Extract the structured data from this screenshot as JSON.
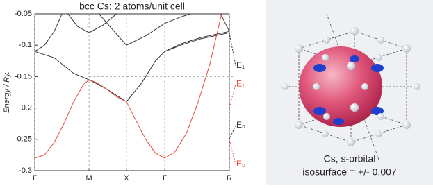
{
  "chart_data": {
    "type": "line",
    "title": "bcc Cs: 2 atoms/unit cell",
    "ylabel": "Energy / Ry.",
    "xlim": [
      0,
      1
    ],
    "ylim": [
      -0.3,
      -0.05
    ],
    "xticks": [
      {
        "value": 0,
        "label": "Γ"
      },
      {
        "value": 0.279,
        "label": "M"
      },
      {
        "value": 0.471,
        "label": "X"
      },
      {
        "value": 0.668,
        "label": "Γ"
      },
      {
        "value": 1,
        "label": "R"
      }
    ],
    "yticks": [
      -0.3,
      -0.25,
      -0.2,
      -0.15,
      -0.1,
      -0.05
    ],
    "grid": true,
    "reference_lines": [
      -0.15
    ],
    "series": [
      {
        "color": "#333333",
        "x": [
          0,
          0.1,
          0.2,
          0.279,
          0.37,
          0.471,
          0.55,
          0.62,
          0.668,
          0.75,
          0.85,
          1
        ],
        "values": [
          -0.11,
          -0.12,
          -0.145,
          -0.155,
          -0.17,
          -0.19,
          -0.16,
          -0.125,
          -0.11,
          -0.1,
          -0.09,
          -0.08
        ]
      },
      {
        "color": "#333333",
        "x": [
          0,
          0.05,
          0.1,
          0.14
        ],
        "values": [
          -0.11,
          -0.1,
          -0.078,
          -0.05
        ]
      },
      {
        "color": "#333333",
        "x": [
          0.17,
          0.22,
          0.279,
          0.35,
          0.42
        ],
        "values": [
          -0.05,
          -0.07,
          -0.08,
          -0.068,
          -0.05
        ]
      },
      {
        "color": "#333333",
        "x": [
          0.33,
          0.4,
          0.471,
          0.57,
          0.668,
          0.75,
          0.8
        ],
        "values": [
          -0.05,
          -0.075,
          -0.1,
          -0.085,
          -0.065,
          -0.055,
          -0.05
        ]
      },
      {
        "color": "#333333",
        "x": [
          0.668,
          0.75,
          0.85,
          1
        ],
        "values": [
          -0.11,
          -0.098,
          -0.088,
          -0.078
        ]
      },
      {
        "color": "#333333",
        "x": [
          0.955,
          1
        ],
        "values": [
          -0.05,
          -0.078
        ]
      },
      {
        "color": "#e8473c",
        "x": [
          0,
          0.05,
          0.1,
          0.15,
          0.2,
          0.25,
          0.279,
          0.32,
          0.37,
          0.42,
          0.471,
          0.52,
          0.57,
          0.62,
          0.668,
          0.72,
          0.78,
          0.84,
          0.9,
          0.96
        ],
        "values": [
          -0.28,
          -0.275,
          -0.255,
          -0.225,
          -0.19,
          -0.163,
          -0.155,
          -0.16,
          -0.17,
          -0.182,
          -0.19,
          -0.22,
          -0.25,
          -0.272,
          -0.28,
          -0.27,
          -0.24,
          -0.19,
          -0.13,
          -0.05
        ]
      }
    ],
    "annotations": [
      {
        "text": "E₁",
        "color": "#333333",
        "y": -0.133,
        "from": -0.08
      },
      {
        "text": "E₁",
        "color": "#e8473c",
        "y": -0.162,
        "from": -0.2
      },
      {
        "text": "E₀",
        "color": "#333333",
        "y": -0.228,
        "from": -0.25
      },
      {
        "text": "E₀",
        "color": "#e8473c",
        "y": -0.29,
        "from": -0.25
      }
    ]
  },
  "image_caption": [
    "Cs, s-orbital",
    "isosurface = +/- 0.007"
  ]
}
